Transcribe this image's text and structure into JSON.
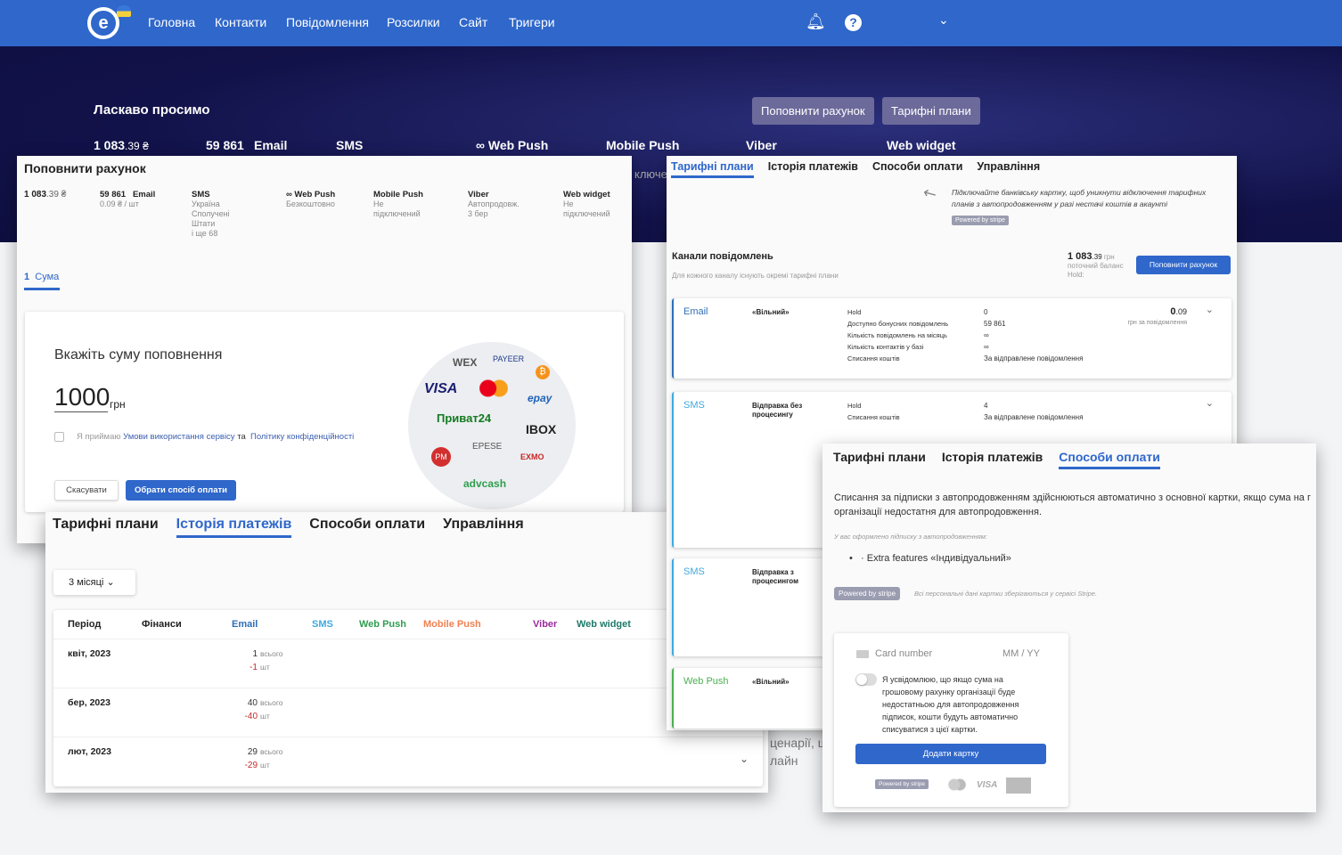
{
  "nav": {
    "items": [
      "Головна",
      "Контакти",
      "Повідомлення",
      "Розсилки",
      "Сайт",
      "Тригери"
    ],
    "logo": "e"
  },
  "hero": {
    "welcome": "Ласкаво просимо",
    "topup": "Поповнити рахунок",
    "plans": "Тарифні плани",
    "balance_int": "1 083",
    "balance_dec": ".39 ₴",
    "email_count": "59 861",
    "channels": [
      "Email",
      "SMS",
      "∞ Web Push",
      "Mobile Push",
      "Viber",
      "Web widget"
    ],
    "peek": "ключен"
  },
  "topup": {
    "title": "Поповнити рахунок",
    "balance_int": "1 083",
    "balance_dec": ".39 ₴",
    "stats": [
      {
        "h": "59 861   Email",
        "s": "0.09 ₴ / шт"
      },
      {
        "h": "SMS",
        "s": "Україна\nСполучені\nШтати\nі ще 68"
      },
      {
        "h": "∞ Web Push",
        "s": "Безкоштовно"
      },
      {
        "h": "Mobile Push",
        "s": "Не\nпідключений"
      },
      {
        "h": "Viber",
        "s": "Автопродовж.\n3 бер"
      },
      {
        "h": "Web widget",
        "s": "Не\nпідключений"
      }
    ],
    "step_num": "1",
    "step_label": "Сума",
    "heading": "Вкажіть суму поповнення",
    "amount": "1000",
    "currency": "грн",
    "accept": "Я приймаю",
    "terms": "Умови використання сервісу",
    "and": "та",
    "privacy": "Політику конфіденційності",
    "cancel": "Скасувати",
    "choose": "Обрати спосіб оплати",
    "logos": [
      "WEX",
      "PAYEER",
      "₿",
      "VISA",
      "mastercard",
      "epay",
      "Приват24",
      "IBOX",
      "PM",
      "EPESE",
      "EXMO",
      "advcash"
    ]
  },
  "tabs": [
    "Тарифні плани",
    "Історія платежів",
    "Способи оплати",
    "Управління"
  ],
  "plans": {
    "hint": "Підключайте банківську картку, щоб уникнути відключення тарифних планів з автопродовженням у разі нестачі коштів в акаунті",
    "stripe": "Powered by stripe",
    "channels_title": "Канали повідомлень",
    "channels_sub": "Для кожного каналу існують окремі тарифні плани",
    "bal_int": "1 083",
    "bal_dec": ".39",
    "bal_unit": "грн",
    "bal_label": "поточний баланс",
    "hold": "Hold:",
    "topup": "Поповнити рахунок",
    "cards": [
      {
        "ch": "Email",
        "color": "#2f6fb8",
        "plan": "«Вільний»",
        "rows": [
          [
            "Hold",
            "0"
          ],
          [
            "Доступно бонусних повідомлень",
            "59 861"
          ],
          [
            "Кількість повідомлень на місяць",
            "∞"
          ],
          [
            "Кількість контактів у базі",
            "∞"
          ],
          [
            "Списання коштів",
            "За відправлене повідомлення"
          ]
        ],
        "price_int": "0",
        "price_dec": ".09",
        "price_unit": "грн за повідомлення"
      },
      {
        "ch": "SMS",
        "color": "#3fa9e0",
        "plan": "Відправка без процесингу",
        "rows": [
          [
            "Hold",
            "4"
          ],
          [
            "Списання коштів",
            "За відправлене повідомлення"
          ]
        ]
      },
      {
        "ch": "SMS",
        "color": "#3fa9e0",
        "plan": "Відправка з процесингом",
        "rows": []
      },
      {
        "ch": "Web Push",
        "color": "#4caf50",
        "plan": "«Вільний»",
        "rows": []
      }
    ]
  },
  "history": {
    "period_select": "3 місяці",
    "cols": [
      "Період",
      "Фінанси",
      "Email",
      "SMS",
      "Web Push",
      "Mobile Push",
      "Viber",
      "Web widget"
    ],
    "col_colors": [
      "#222",
      "#222",
      "#2f6fb8",
      "#3fa9e0",
      "#2e9e4f",
      "#f08050",
      "#9b2a9b",
      "#1f7a6a"
    ],
    "rows": [
      {
        "period": "квіт, 2023",
        "total": "1",
        "neg": "-1"
      },
      {
        "period": "бер, 2023",
        "total": "40",
        "neg": "-40"
      },
      {
        "period": "лют, 2023",
        "total": "29",
        "neg": "-29"
      }
    ],
    "total_label": "всього",
    "unit": "шт"
  },
  "payment": {
    "desc": "Списання за підписки з автопродовженням здійснюються автоматично з основної картки, якщо сума на г організації недостатня для автопродовження.",
    "sub_label": "У вас оформлено підписку з автопродовженням:",
    "sub_item": "· Extra features «Індивідуальний»",
    "stripe": "Powered by stripe",
    "stripe_note": "Всі персональні дані картки зберігаються у сервісі Stripe.",
    "card_placeholder": "Card number",
    "exp_placeholder": "MM / YY",
    "consent": "Я усвідомлюю, що якщо сума на грошовому рахунку організації буде недостатньою для автопродовження підписок, кошти будуть автоматично списуватися з цієї картки.",
    "add_card": "Додати картку",
    "visa": "VISA"
  },
  "bg_peek": [
    "ценарії, ш",
    "лайн"
  ]
}
